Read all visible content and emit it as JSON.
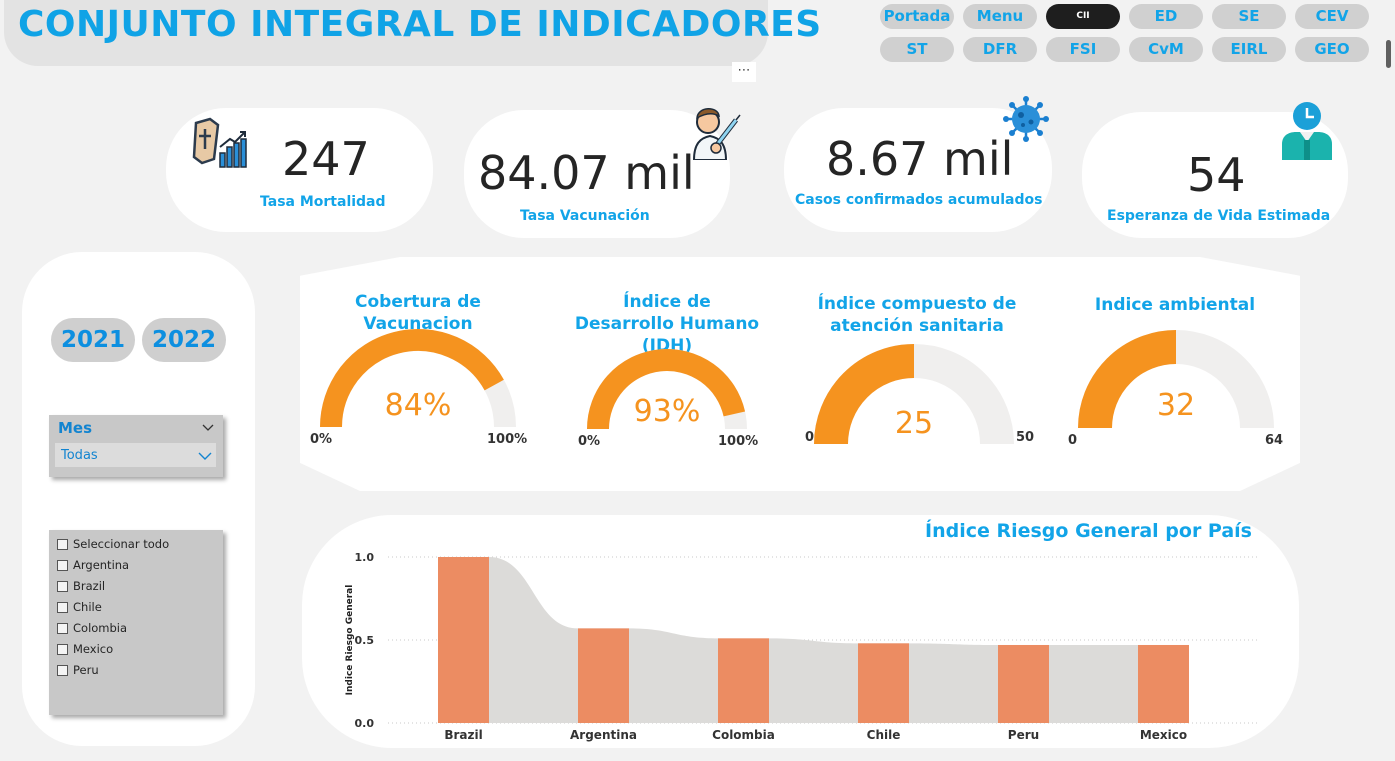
{
  "header": {
    "title": "CONJUNTO INTEGRAL DE INDICADORES",
    "more_label": "⋯"
  },
  "nav": {
    "row1": [
      "Portada",
      "Menu",
      "CII",
      "ED",
      "SE",
      "CEV"
    ],
    "row2": [
      "ST",
      "DFR",
      "FSI",
      "CvM",
      "EIRL",
      "GEO"
    ],
    "active": "CII"
  },
  "kpis": [
    {
      "value": "247",
      "label": "Tasa Mortalidad",
      "icon": "coffin-chart-icon"
    },
    {
      "value": "84.07 mil",
      "label": "Tasa Vacunación",
      "icon": "vaccinated-person-icon"
    },
    {
      "value": "8.67 mil",
      "label": "Casos confirmados acumulados",
      "icon": "virus-icon"
    },
    {
      "value": "54",
      "label": "Esperanza de Vida Estimada",
      "icon": "person-clock-icon"
    }
  ],
  "filters": {
    "years": [
      "2021",
      "2022"
    ],
    "month_label": "Mes",
    "month_value": "Todas",
    "countries": [
      "Seleccionar todo",
      "Argentina",
      "Brazil",
      "Chile",
      "Colombia",
      "Mexico",
      "Peru"
    ]
  },
  "gauges": [
    {
      "title": "Cobertura de Vacunacion",
      "value_label": "84%",
      "value": 84,
      "min": 0,
      "max": 100,
      "min_label": "0%",
      "max_label": "100%"
    },
    {
      "title": "Índice de Desarrollo Humano (IDH)",
      "value_label": "93%",
      "value": 93,
      "min": 0,
      "max": 100,
      "min_label": "0%",
      "max_label": "100%"
    },
    {
      "title": "Índice compuesto de atención sanitaria",
      "value_label": "25",
      "value": 25,
      "min": 0,
      "max": 50,
      "min_label": "0",
      "max_label": "50"
    },
    {
      "title": "Indice ambiental",
      "value_label": "32",
      "value": 32,
      "min": 0,
      "max": 64,
      "min_label": "0",
      "max_label": "64"
    }
  ],
  "colors": {
    "accent": "#12a4e8",
    "gauge_fill": "#f5931f",
    "gauge_track": "#f0efee",
    "bar": "#ec8c62",
    "ribbon": "#dcdbd9"
  },
  "chart_data": {
    "type": "bar",
    "title": "Índice Riesgo General por País",
    "xlabel": "",
    "ylabel": "Indice Riesgo General",
    "categories": [
      "Brazil",
      "Argentina",
      "Colombia",
      "Chile",
      "Peru",
      "Mexico"
    ],
    "values": [
      1.0,
      0.57,
      0.51,
      0.48,
      0.47,
      0.47
    ],
    "ylim": [
      0,
      1.0
    ],
    "yticks": [
      "1.0",
      "0.5",
      "0.0"
    ],
    "grid": true
  }
}
